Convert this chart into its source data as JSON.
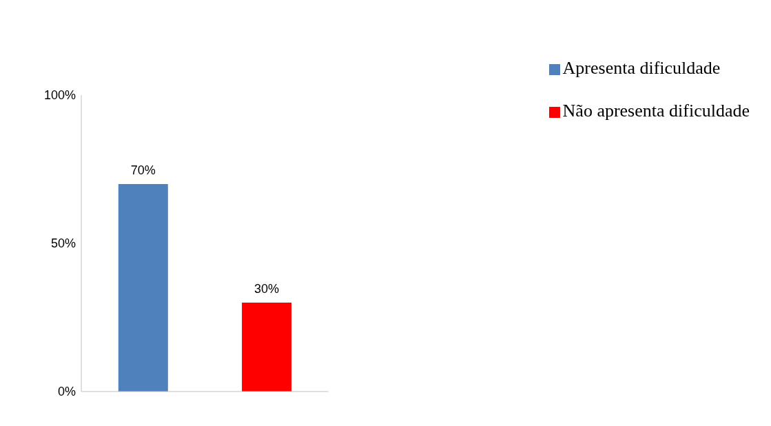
{
  "chart_data": {
    "type": "bar",
    "categories": [
      null,
      null
    ],
    "series": [
      {
        "name": "Apresenta dificuldade",
        "color": "#4f81bd",
        "values": [
          70,
          null
        ],
        "value_labels": [
          "70%",
          null
        ]
      },
      {
        "name": "Não apresenta dificuldade",
        "color": "#ff0000",
        "values": [
          null,
          30
        ],
        "value_labels": [
          null,
          "30%"
        ]
      }
    ],
    "ylim": [
      0,
      100
    ],
    "yticks": [
      {
        "value": 0,
        "label": "0%"
      },
      {
        "value": 50,
        "label": "50%"
      },
      {
        "value": 100,
        "label": "100%"
      }
    ],
    "grid": false,
    "legend": "top right"
  }
}
